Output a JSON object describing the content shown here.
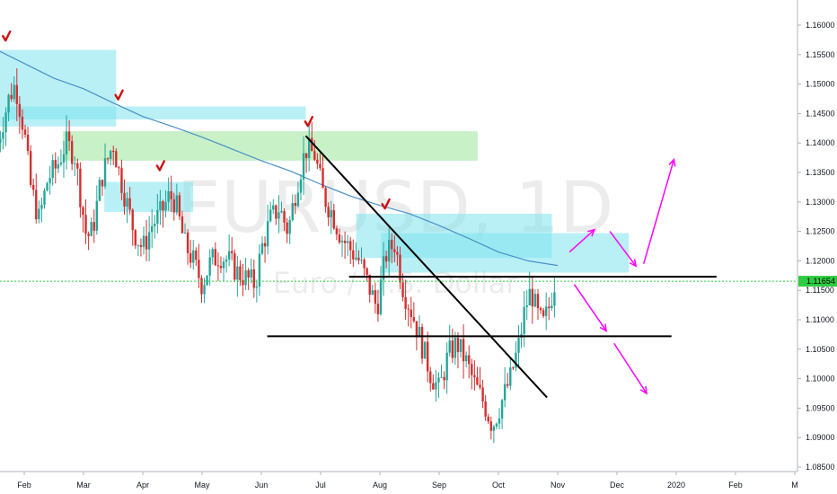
{
  "chart_data": {
    "type": "candlestick",
    "symbol": "EURUSD",
    "interval": "1D",
    "instrument_name": "Euro / U.S. Dollar",
    "watermark_text": "EURUSD, 1D",
    "watermark_sub": "Euro / U.S. Dollar",
    "last_price": "1.11654",
    "y_axis": {
      "min": 1.0835,
      "max": 1.1645,
      "ticks": [
        "1.16000",
        "1.15500",
        "1.15000",
        "1.14500",
        "1.14000",
        "1.13500",
        "1.13000",
        "1.12500",
        "1.12000",
        "1.11500",
        "1.11000",
        "1.10500",
        "1.10000",
        "1.09500",
        "1.09000",
        "1.08500"
      ]
    },
    "x_axis": {
      "ticks": [
        {
          "label": "Feb",
          "t": 1.0
        },
        {
          "label": "Mar",
          "t": 2.0
        },
        {
          "label": "Apr",
          "t": 3.0
        },
        {
          "label": "May",
          "t": 4.0
        },
        {
          "label": "Jun",
          "t": 5.0
        },
        {
          "label": "Jul",
          "t": 6.0
        },
        {
          "label": "Aug",
          "t": 7.0
        },
        {
          "label": "Sep",
          "t": 8.0
        },
        {
          "label": "Oct",
          "t": 9.0
        },
        {
          "label": "Nov",
          "t": 10.0
        },
        {
          "label": "Dec",
          "t": 11.0
        },
        {
          "label": "2020",
          "t": 12.0
        },
        {
          "label": "Feb",
          "t": 13.0
        },
        {
          "label": "M",
          "t": 14.0
        }
      ]
    },
    "colors": {
      "up": "#26a69a",
      "down": "#d32f2f",
      "ma": "#4a90c8",
      "cyan_zone": "#7de3ef",
      "green_zone": "#9be69b",
      "last_price_line": "#2ecc40",
      "trendline": "#000000",
      "arrows": "#ff00ff",
      "checkmark": "#cc1111"
    },
    "price_path": [
      [
        0.55,
        1.14
      ],
      [
        0.75,
        1.148
      ],
      [
        0.85,
        1.15
      ],
      [
        1.0,
        1.142
      ],
      [
        1.1,
        1.133
      ],
      [
        1.25,
        1.127
      ],
      [
        1.4,
        1.134
      ],
      [
        1.55,
        1.136
      ],
      [
        1.7,
        1.14
      ],
      [
        1.85,
        1.138
      ],
      [
        1.95,
        1.131
      ],
      [
        2.05,
        1.124
      ],
      [
        2.15,
        1.125
      ],
      [
        2.3,
        1.134
      ],
      [
        2.5,
        1.14
      ],
      [
        2.6,
        1.135
      ],
      [
        2.75,
        1.129
      ],
      [
        2.85,
        1.125
      ],
      [
        3.0,
        1.122
      ],
      [
        3.15,
        1.126
      ],
      [
        3.3,
        1.128
      ],
      [
        3.45,
        1.131
      ],
      [
        3.55,
        1.13
      ],
      [
        3.7,
        1.123
      ],
      [
        3.85,
        1.12
      ],
      [
        4.0,
        1.116
      ],
      [
        4.15,
        1.12
      ],
      [
        4.3,
        1.121
      ],
      [
        4.45,
        1.12
      ],
      [
        4.6,
        1.118
      ],
      [
        4.75,
        1.117
      ],
      [
        4.9,
        1.116
      ],
      [
        5.0,
        1.122
      ],
      [
        5.15,
        1.127
      ],
      [
        5.3,
        1.129
      ],
      [
        5.45,
        1.125
      ],
      [
        5.6,
        1.133
      ],
      [
        5.75,
        1.139
      ],
      [
        5.9,
        1.138
      ],
      [
        6.05,
        1.131
      ],
      [
        6.2,
        1.128
      ],
      [
        6.35,
        1.124
      ],
      [
        6.5,
        1.122
      ],
      [
        6.65,
        1.12
      ],
      [
        6.8,
        1.116
      ],
      [
        6.95,
        1.112
      ],
      [
        7.1,
        1.121
      ],
      [
        7.25,
        1.123
      ],
      [
        7.4,
        1.115
      ],
      [
        7.55,
        1.111
      ],
      [
        7.7,
        1.106
      ],
      [
        7.85,
        1.101
      ],
      [
        8.0,
        1.098
      ],
      [
        8.15,
        1.104
      ],
      [
        8.3,
        1.106
      ],
      [
        8.45,
        1.103
      ],
      [
        8.6,
        1.099
      ],
      [
        8.75,
        1.096
      ],
      [
        8.9,
        1.092
      ],
      [
        9.05,
        1.096
      ],
      [
        9.2,
        1.1
      ],
      [
        9.35,
        1.106
      ],
      [
        9.45,
        1.112
      ],
      [
        9.55,
        1.115
      ],
      [
        9.65,
        1.111
      ],
      [
        9.75,
        1.109
      ],
      [
        9.85,
        1.112
      ],
      [
        9.95,
        1.1165
      ]
    ],
    "moving_average": [
      [
        -0.3,
        1.162
      ],
      [
        0.3,
        1.157
      ],
      [
        0.8,
        1.1545
      ],
      [
        1.5,
        1.151
      ],
      [
        2.0,
        1.1492
      ],
      [
        2.5,
        1.1468
      ],
      [
        3.0,
        1.1445
      ],
      [
        3.5,
        1.1428
      ],
      [
        4.0,
        1.141
      ],
      [
        4.5,
        1.139
      ],
      [
        5.0,
        1.137
      ],
      [
        5.5,
        1.1352
      ],
      [
        6.0,
        1.133
      ],
      [
        6.5,
        1.131
      ],
      [
        7.0,
        1.1294
      ],
      [
        7.5,
        1.128
      ],
      [
        8.0,
        1.126
      ],
      [
        8.5,
        1.1238
      ],
      [
        9.0,
        1.1215
      ],
      [
        9.5,
        1.12
      ],
      [
        10.0,
        1.1192
      ]
    ],
    "zones": [
      {
        "kind": "cyan",
        "t1": 0.55,
        "t2": 2.55,
        "y1": 1.1558,
        "y2": 1.1428
      },
      {
        "kind": "cyan",
        "t1": 0.68,
        "t2": 5.75,
        "y1": 1.1462,
        "y2": 1.144
      },
      {
        "kind": "green",
        "t1": 1.65,
        "t2": 8.65,
        "y1": 1.142,
        "y2": 1.137
      },
      {
        "kind": "cyan",
        "t1": 2.35,
        "t2": 3.85,
        "y1": 1.1334,
        "y2": 1.1283
      },
      {
        "kind": "cyan",
        "t1": 6.6,
        "t2": 9.9,
        "y1": 1.128,
        "y2": 1.1205
      },
      {
        "kind": "cyan",
        "t1": 7.02,
        "t2": 11.2,
        "y1": 1.1247,
        "y2": 1.118
      }
    ],
    "horizontal_lines": [
      {
        "t1": 6.48,
        "t2": 12.68,
        "y": 1.1173
      },
      {
        "t1": 5.1,
        "t2": 11.92,
        "y": 1.1072
      }
    ],
    "trendline": {
      "t1": 5.75,
      "y1": 1.1412,
      "t2": 9.82,
      "y2": 1.0968
    },
    "checkmarks": [
      {
        "t": 0.7,
        "y": 1.158
      },
      {
        "t": 2.6,
        "y": 1.148
      },
      {
        "t": 5.8,
        "y": 1.1435
      },
      {
        "t": 3.3,
        "y": 1.136
      },
      {
        "t": 7.1,
        "y": 1.1295
      }
    ],
    "arrows": [
      {
        "t1": 10.2,
        "y1": 1.1215,
        "t2": 10.62,
        "y2": 1.1253
      },
      {
        "t1": 10.88,
        "y1": 1.125,
        "t2": 11.32,
        "y2": 1.1191
      },
      {
        "t1": 11.45,
        "y1": 1.1195,
        "t2": 11.96,
        "y2": 1.1372
      },
      {
        "t1": 10.28,
        "y1": 1.116,
        "t2": 10.82,
        "y2": 1.1081
      },
      {
        "t1": 10.95,
        "y1": 1.106,
        "t2": 11.5,
        "y2": 1.0975
      }
    ]
  }
}
